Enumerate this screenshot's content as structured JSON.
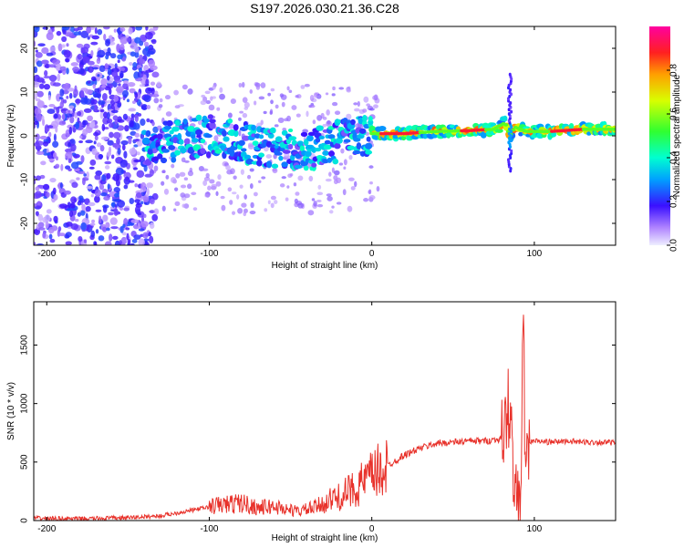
{
  "chart_data": [
    {
      "type": "heatmap",
      "title": "S197.2026.030.21.36.C28",
      "xlabel": "Height of straight line (km)",
      "ylabel": "Frequency (Hz)",
      "xlim": [
        -208,
        150
      ],
      "ylim": [
        -25,
        25
      ],
      "xticks": [
        -200,
        -100,
        0,
        100
      ],
      "yticks": [
        -20,
        -10,
        0,
        10,
        20
      ],
      "colorbar": {
        "label": "Normalized spectral amplitude",
        "range": [
          0,
          1
        ],
        "ticks": [
          0.0,
          0.2,
          0.4,
          0.6,
          0.8
        ],
        "tick_labels": [
          "0.0",
          "0.2",
          "0.4",
          "0.6",
          "0.8"
        ]
      },
      "ridge": {
        "x": [
          -140,
          -120,
          -100,
          -85,
          -70,
          -55,
          -40,
          -30,
          -20,
          -10,
          0,
          20,
          40,
          60,
          75,
          82,
          85,
          88,
          95,
          110,
          130,
          150
        ],
        "freq_hz": [
          -2,
          -1,
          0,
          -1,
          -2,
          -3,
          -3.5,
          -2.5,
          -1,
          0,
          0.5,
          0.5,
          1,
          1.2,
          1.5,
          3,
          0,
          2,
          1,
          1,
          1.5,
          1.5
        ]
      }
    },
    {
      "type": "line",
      "title": "",
      "xlabel": "Height of straight line (km)",
      "ylabel": "SNR (10 * v/v)",
      "xlim": [
        -208,
        150
      ],
      "ylim": [
        0,
        1870
      ],
      "xticks": [
        -200,
        -100,
        0,
        100
      ],
      "yticks": [
        0,
        500,
        1000,
        1500
      ],
      "series": [
        {
          "name": "SNR",
          "color": "#e8322b",
          "x": [
            -208,
            -180,
            -150,
            -130,
            -110,
            -95,
            -80,
            -70,
            -60,
            -50,
            -45,
            -35,
            -25,
            -20,
            -15,
            -10,
            -5,
            0,
            10,
            20,
            30,
            40,
            50,
            60,
            70,
            75,
            80,
            82,
            84,
            86,
            88,
            90,
            91,
            92,
            93,
            94,
            95,
            96,
            98,
            100,
            110,
            120,
            130,
            140,
            150
          ],
          "y": [
            20,
            15,
            25,
            40,
            90,
            130,
            150,
            110,
            120,
            90,
            80,
            110,
            180,
            200,
            240,
            280,
            330,
            380,
            470,
            560,
            620,
            660,
            670,
            680,
            680,
            690,
            700,
            800,
            1000,
            700,
            300,
            80,
            60,
            700,
            1850,
            900,
            300,
            600,
            680,
            680,
            670,
            680,
            670,
            670,
            665
          ]
        }
      ]
    }
  ]
}
